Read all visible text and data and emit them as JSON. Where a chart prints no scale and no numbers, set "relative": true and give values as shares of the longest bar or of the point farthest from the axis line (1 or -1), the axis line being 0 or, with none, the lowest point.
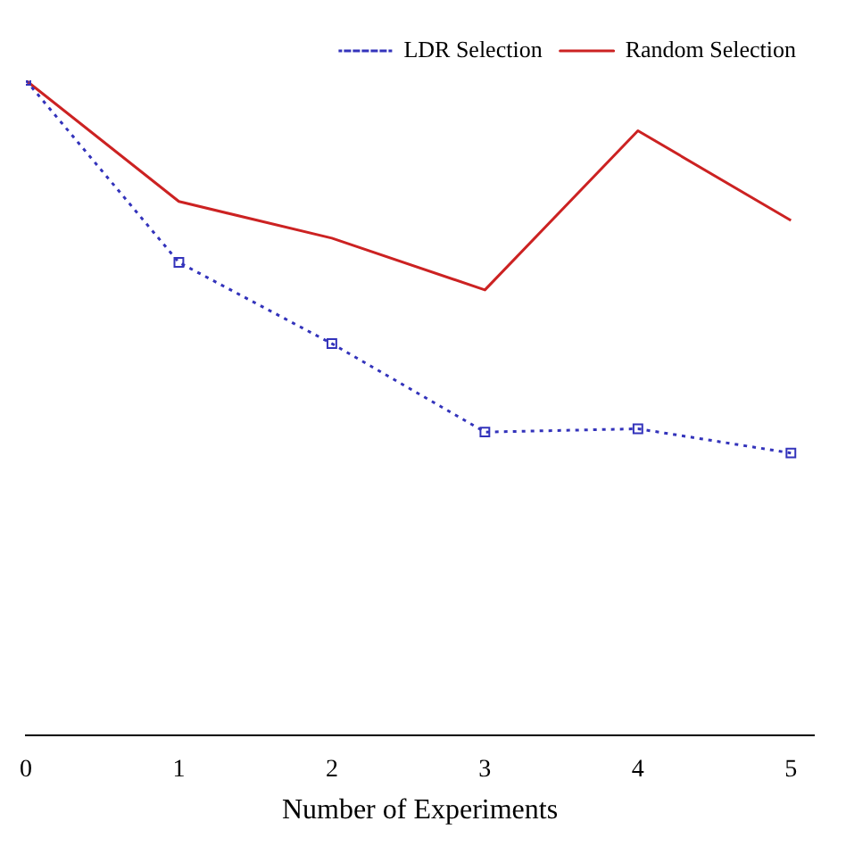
{
  "chart_data": {
    "type": "line",
    "relative": true,
    "xlabel": "Number of Experiments",
    "x": [
      0,
      1,
      2,
      3,
      4,
      5
    ],
    "xlim": [
      0,
      5.15
    ],
    "xticks": [
      0,
      1,
      2,
      3,
      4,
      5
    ],
    "grid": false,
    "legend": "top right",
    "series": [
      {
        "name": "Random Selection",
        "color": "#cc2222",
        "values": [
          1,
          0.815,
          0.759,
          0.68,
          0.923,
          0.786
        ],
        "marker": "none",
        "line_style": "solid"
      },
      {
        "name": "LDR Selection",
        "color": "#3333bb",
        "values": [
          1,
          0.722,
          0.598,
          0.463,
          0.468,
          0.431
        ],
        "marker": "square",
        "line_style": "dotted"
      }
    ]
  }
}
